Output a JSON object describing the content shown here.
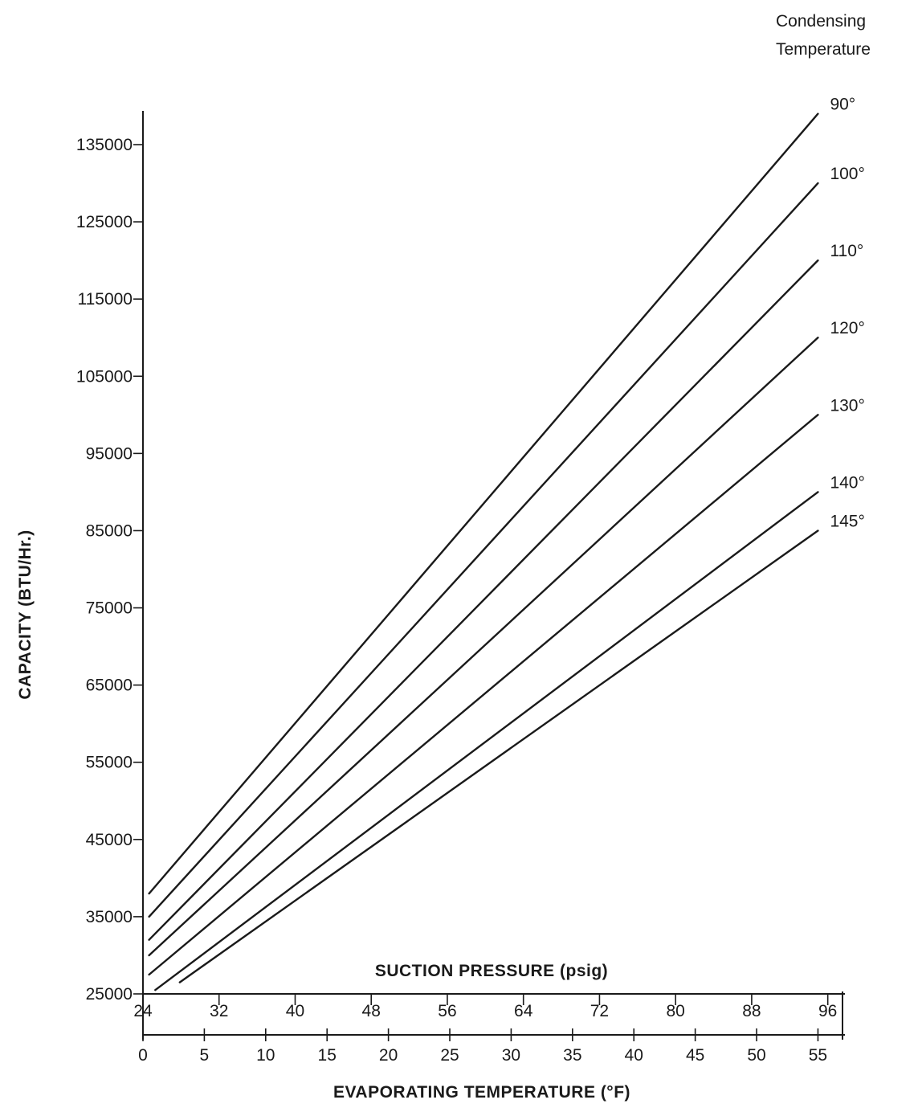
{
  "chart_data": {
    "type": "line",
    "ylabel": "CAPACITY (BTU/Hr.)",
    "xlabel": "EVAPORATING TEMPERATURE (°F)",
    "x2label": "SUCTION PRESSURE (psig)",
    "legend_title_line1": "Condensing",
    "legend_title_line2": "Temperature",
    "legend_placement": "right",
    "grid": false,
    "ylim": [
      25000,
      140000
    ],
    "xlim": [
      0,
      57
    ],
    "y_ticks": [
      25000,
      35000,
      45000,
      55000,
      65000,
      75000,
      85000,
      95000,
      105000,
      115000,
      125000,
      135000
    ],
    "y_tick_labels": [
      "25000",
      "35000",
      "45000",
      "55000",
      "65000",
      "75000",
      "85000",
      "95000",
      "105000",
      "115000",
      "125000",
      "135000"
    ],
    "x_ticks": [
      0,
      5,
      10,
      15,
      20,
      25,
      30,
      35,
      40,
      45,
      50,
      55
    ],
    "x_tick_labels": [
      "0",
      "5",
      "10",
      "15",
      "20",
      "25",
      "30",
      "35",
      "40",
      "45",
      "50",
      "55"
    ],
    "x2_ticks": [
      0,
      6.2,
      12.4,
      18.6,
      24.8,
      31,
      37.2,
      43.4,
      49.6,
      55.8
    ],
    "x2_tick_labels": [
      "24",
      "32",
      "40",
      "48",
      "56",
      "64",
      "72",
      "80",
      "88",
      "96"
    ],
    "series": [
      {
        "name": "90°",
        "x": [
          0.5,
          55
        ],
        "y": [
          38000,
          139000
        ]
      },
      {
        "name": "100°",
        "x": [
          0.5,
          55
        ],
        "y": [
          35000,
          130000
        ]
      },
      {
        "name": "110°",
        "x": [
          0.5,
          55
        ],
        "y": [
          32000,
          120000
        ]
      },
      {
        "name": "120°",
        "x": [
          0.5,
          55
        ],
        "y": [
          30000,
          110000
        ]
      },
      {
        "name": "130°",
        "x": [
          0.5,
          55
        ],
        "y": [
          27500,
          100000
        ]
      },
      {
        "name": "140°",
        "x": [
          1,
          55
        ],
        "y": [
          25500,
          90000
        ]
      },
      {
        "name": "145°",
        "x": [
          3,
          55
        ],
        "y": [
          26500,
          85000
        ]
      }
    ]
  }
}
